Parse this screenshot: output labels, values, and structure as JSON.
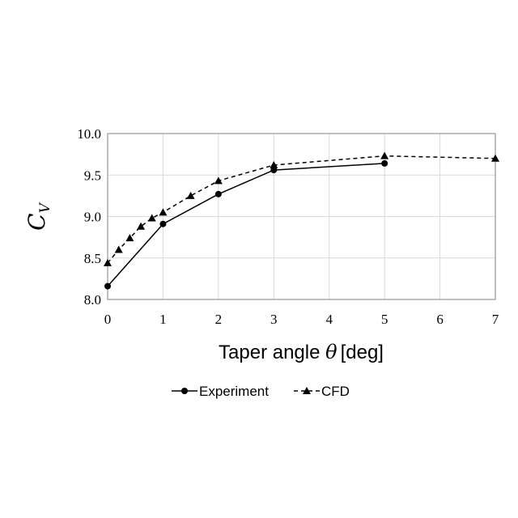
{
  "chart_data": {
    "type": "line",
    "xlabel": {
      "main": "Taper angle ",
      "symbol": "θ",
      "unit": "[deg]"
    },
    "ylabel": {
      "main": "C",
      "sub": "V"
    },
    "xlim": [
      0,
      7
    ],
    "ylim": [
      8.0,
      10.0
    ],
    "xticks": [
      "0",
      "1",
      "2",
      "3",
      "4",
      "5",
      "6",
      "7"
    ],
    "yticks": [
      "8.0",
      "8.5",
      "9.0",
      "9.5",
      "10.0"
    ],
    "grid": true,
    "legend_position": "bottom",
    "series": [
      {
        "name": "Experiment",
        "marker": "circle",
        "line_style": "solid",
        "color": "#000000",
        "x": [
          0,
          1,
          2,
          3,
          5
        ],
        "y": [
          8.16,
          8.91,
          9.27,
          9.56,
          9.64
        ]
      },
      {
        "name": "CFD",
        "marker": "triangle",
        "line_style": "dashed",
        "color": "#000000",
        "x": [
          0,
          0.2,
          0.4,
          0.6,
          0.8,
          1,
          1.5,
          2,
          3,
          5,
          7
        ],
        "y": [
          8.44,
          8.6,
          8.74,
          8.88,
          8.98,
          9.05,
          9.25,
          9.43,
          9.62,
          9.73,
          9.7
        ]
      }
    ]
  }
}
